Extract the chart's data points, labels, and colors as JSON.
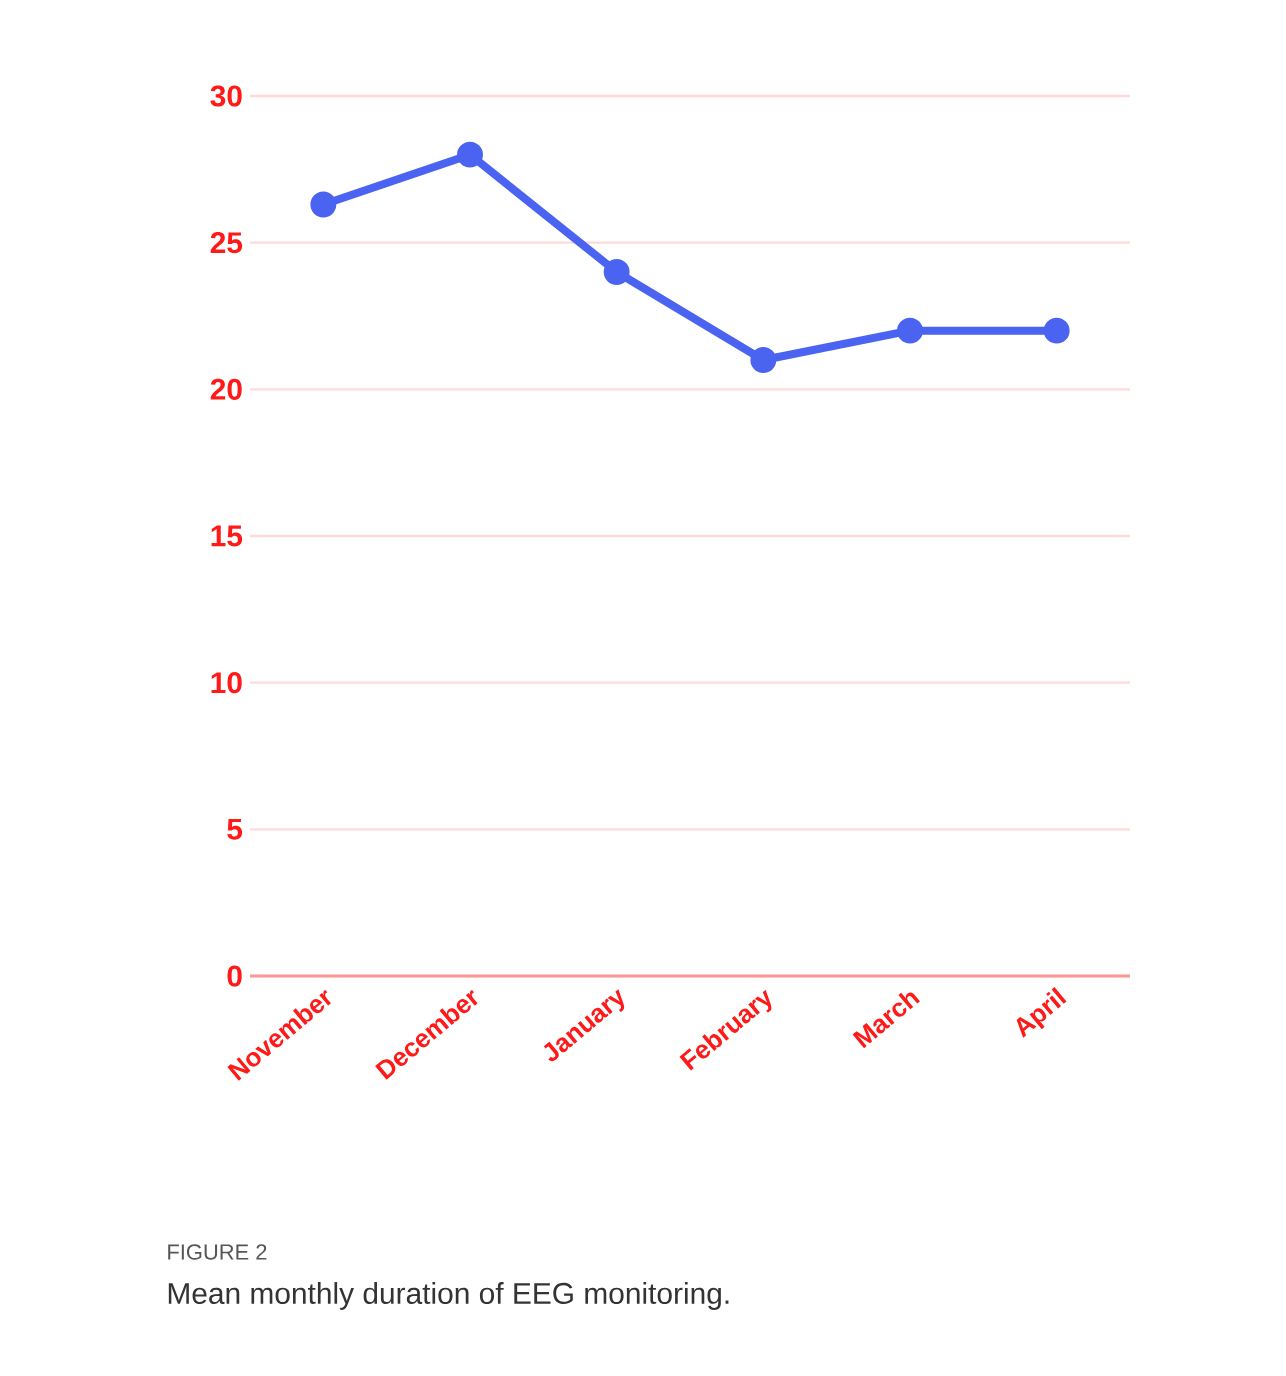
{
  "chart_data": {
    "type": "line",
    "categories": [
      "November",
      "December",
      "January",
      "February",
      "March",
      "April"
    ],
    "values": [
      26.3,
      28,
      24,
      21,
      22,
      22
    ],
    "color": "#4a63f0",
    "ylim": [
      0,
      30
    ],
    "yticks": [
      0,
      5,
      10,
      15,
      20,
      25,
      30
    ],
    "grid": "y",
    "marker": "circle",
    "line_style": "solid",
    "annotations": [
      "FIGURE 2",
      "Mean monthly duration of EEG monitoring."
    ]
  }
}
